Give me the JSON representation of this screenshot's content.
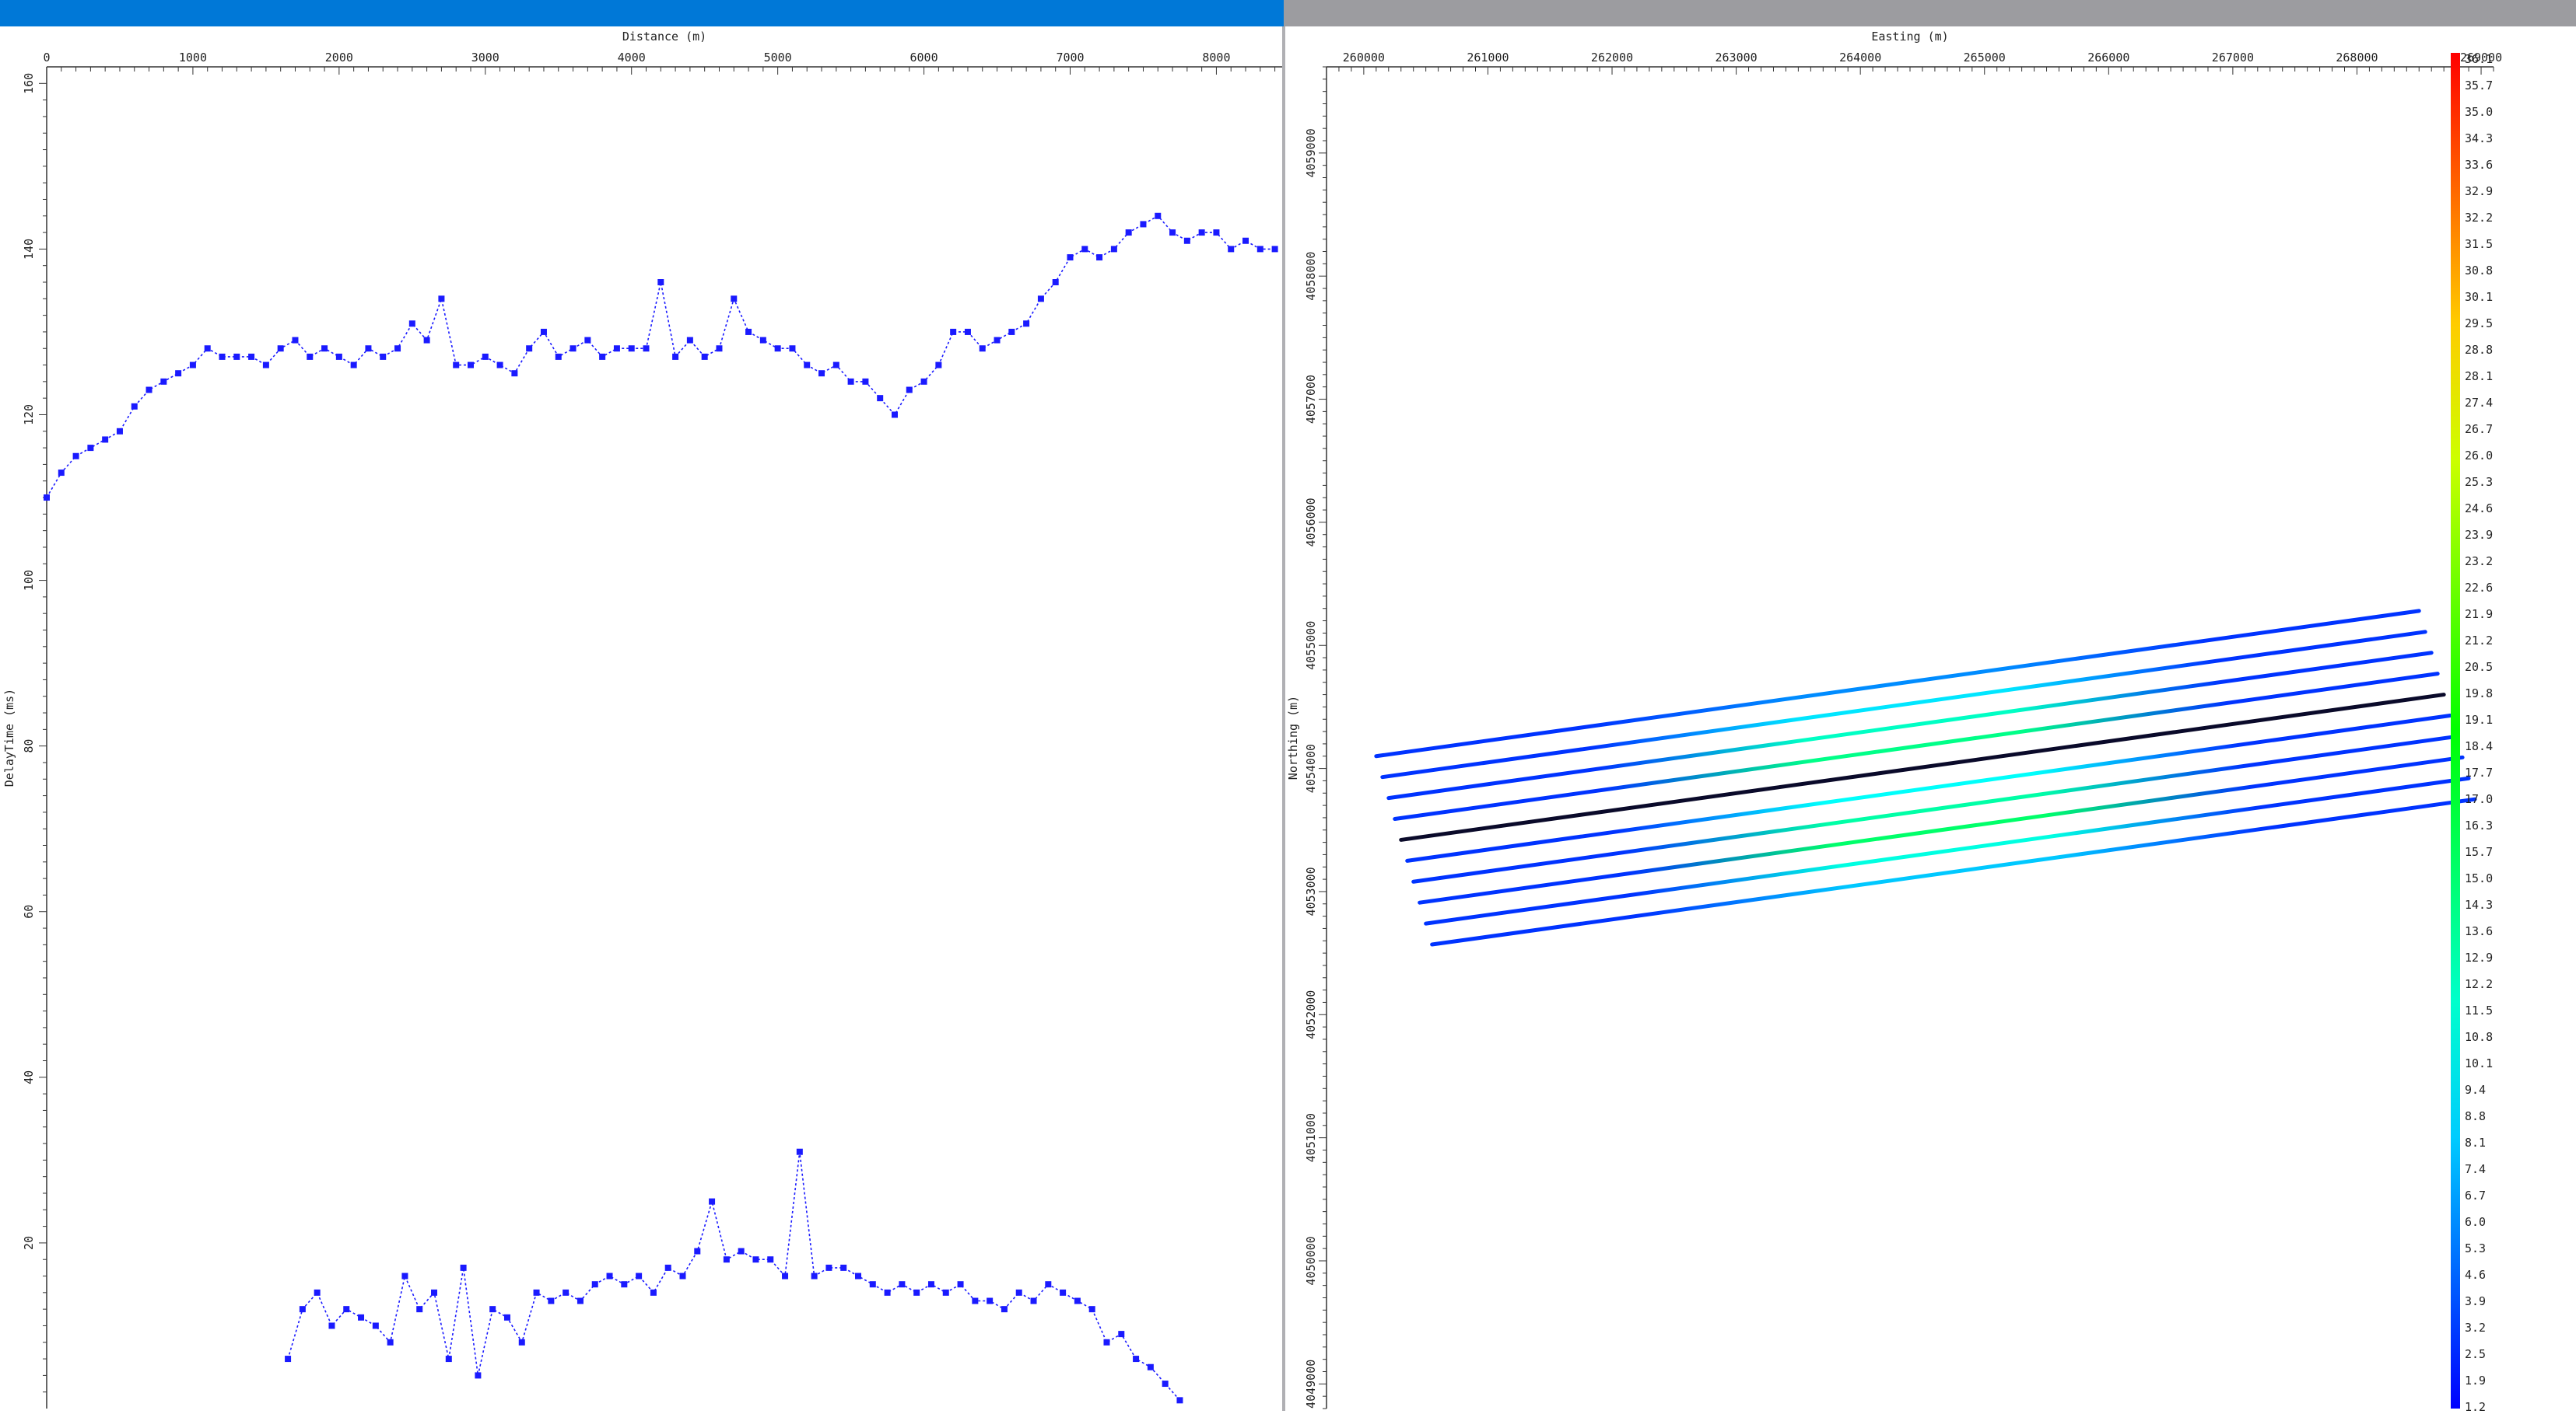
{
  "chart_data": [
    {
      "type": "line",
      "title": "",
      "xlabel": "Distance (m)",
      "ylabel": "DelayTime (ms)",
      "xlim": [
        0,
        8450
      ],
      "ylim": [
        0,
        162
      ],
      "x_ticks": [
        0,
        1000,
        2000,
        3000,
        4000,
        5000,
        6000,
        7000,
        8000
      ],
      "y_ticks": [
        20,
        40,
        60,
        80,
        100,
        120,
        140,
        160
      ],
      "grid": false,
      "legend": "none",
      "marker_color": "#1a1aff",
      "line_color": "#1a1aff",
      "series": [
        {
          "x": [
            0,
            100,
            200,
            300,
            400,
            500,
            600,
            700,
            800,
            900,
            1000,
            1100,
            1200,
            1300,
            1400,
            1500,
            1600,
            1700,
            1800,
            1900,
            2000,
            2100,
            2200,
            2300,
            2400,
            2500,
            2600,
            2700,
            2800,
            2900,
            3000,
            3100,
            3200,
            3300,
            3400,
            3500,
            3600,
            3700,
            3800,
            3900,
            4000,
            4100,
            4200,
            4300,
            4400,
            4500,
            4600,
            4700,
            4800,
            4900,
            5000,
            5100,
            5200,
            5300,
            5400,
            5500,
            5600,
            5700,
            5800,
            5900,
            6000,
            6100,
            6200,
            6300,
            6400,
            6500,
            6600,
            6700,
            6800,
            6900,
            7000,
            7100,
            7200,
            7300,
            7400,
            7500,
            7600,
            7700,
            7800,
            7900,
            8000,
            8100,
            8200,
            8300,
            8400
          ],
          "y": [
            110,
            113,
            115,
            116,
            117,
            118,
            121,
            123,
            124,
            125,
            126,
            128,
            127,
            127,
            127,
            126,
            128,
            129,
            127,
            128,
            127,
            126,
            128,
            127,
            128,
            131,
            129,
            134,
            126,
            126,
            127,
            126,
            125,
            128,
            130,
            127,
            128,
            129,
            127,
            128,
            128,
            128,
            136,
            127,
            129,
            127,
            128,
            134,
            130,
            129,
            128,
            128,
            126,
            125,
            126,
            124,
            124,
            122,
            120,
            123,
            124,
            126,
            130,
            130,
            128,
            129,
            130,
            131,
            134,
            136,
            139,
            140,
            139,
            140,
            142,
            143,
            144,
            142,
            141,
            142,
            142,
            140,
            141,
            140,
            140
          ]
        },
        {
          "x": [
            1650,
            1750,
            1850,
            1950,
            2050,
            2150,
            2250,
            2350,
            2450,
            2550,
            2650,
            2750,
            2850,
            2950,
            3050,
            3150,
            3250,
            3350,
            3450,
            3550,
            3650,
            3750,
            3850,
            3950,
            4050,
            4150,
            4250,
            4350,
            4450,
            4550,
            4650,
            4750,
            4850,
            4950,
            5050,
            5150,
            5250,
            5350,
            5450,
            5550,
            5650,
            5750,
            5850,
            5950,
            6050,
            6150,
            6250,
            6350,
            6450,
            6550,
            6650,
            6750,
            6850,
            6950,
            7050,
            7150,
            7250,
            7350,
            7450,
            7550,
            7650,
            7750
          ],
          "y": [
            6,
            12,
            14,
            10,
            12,
            11,
            10,
            8,
            16,
            12,
            14,
            6,
            17,
            4,
            12,
            11,
            8,
            14,
            13,
            14,
            13,
            15,
            16,
            15,
            16,
            14,
            17,
            16,
            19,
            25,
            18,
            19,
            18,
            18,
            16,
            31,
            16,
            17,
            17,
            16,
            15,
            14,
            15,
            14,
            15,
            14,
            15,
            13,
            13,
            12,
            14,
            13,
            15,
            14,
            13,
            12,
            8,
            9,
            6,
            5,
            3,
            1
          ]
        }
      ]
    },
    {
      "type": "scatter",
      "title": "",
      "xlabel": "Easting (m)",
      "ylabel": "Northing (m)",
      "xlim": [
        259700,
        269100
      ],
      "ylim": [
        4048800,
        4059700
      ],
      "x_ticks": [
        260000,
        261000,
        262000,
        263000,
        264000,
        265000,
        266000,
        267000,
        268000,
        269000
      ],
      "y_ticks": [
        4049000,
        4050000,
        4051000,
        4052000,
        4053000,
        4054000,
        4055000,
        4056000,
        4057000,
        4058000,
        4059000
      ],
      "grid": false,
      "legend": "colorbar-right",
      "colorbar": {
        "min": 1.2,
        "max": 36.1,
        "labels": [
          "36.1",
          "35.7",
          "35.0",
          "34.3",
          "33.6",
          "32.9",
          "32.2",
          "31.5",
          "30.8",
          "30.1",
          "29.5",
          "28.8",
          "28.1",
          "27.4",
          "26.7",
          "26.0",
          "25.3",
          "24.6",
          "23.9",
          "23.2",
          "22.6",
          "21.9",
          "21.2",
          "20.5",
          "19.8",
          "19.1",
          "18.4",
          "17.7",
          "17.0",
          "16.3",
          "15.7",
          "15.0",
          "14.3",
          "13.6",
          "12.9",
          "12.2",
          "11.5",
          "10.8",
          "10.1",
          "9.4",
          "8.8",
          "8.1",
          "7.4",
          "6.7",
          "6.0",
          "5.3",
          "4.6",
          "3.9",
          "3.2",
          "2.5",
          "1.9",
          "1.2"
        ]
      },
      "lines": [
        {
          "start": [
            260100,
            4054100
          ],
          "end": [
            268500,
            4055280
          ],
          "value": 6
        },
        {
          "start": [
            260150,
            4053930
          ],
          "end": [
            268550,
            4055110
          ],
          "value": 9
        },
        {
          "start": [
            260200,
            4053760
          ],
          "end": [
            268600,
            4054940
          ],
          "value": 12
        },
        {
          "start": [
            260250,
            4053590
          ],
          "end": [
            268650,
            4054770
          ],
          "value": 14
        },
        {
          "start": [
            260300,
            4053420
          ],
          "end": [
            268700,
            4054600
          ],
          "value": 0
        },
        {
          "start": [
            260350,
            4053250
          ],
          "end": [
            268750,
            4054430
          ],
          "value": 10
        },
        {
          "start": [
            260400,
            4053080
          ],
          "end": [
            268800,
            4054260
          ],
          "value": 13
        },
        {
          "start": [
            260450,
            4052910
          ],
          "end": [
            268850,
            4054090
          ],
          "value": 15
        },
        {
          "start": [
            260500,
            4052740
          ],
          "end": [
            268900,
            4053920
          ],
          "value": 11
        },
        {
          "start": [
            260550,
            4052570
          ],
          "end": [
            268950,
            4053750
          ],
          "value": 8
        }
      ]
    }
  ]
}
